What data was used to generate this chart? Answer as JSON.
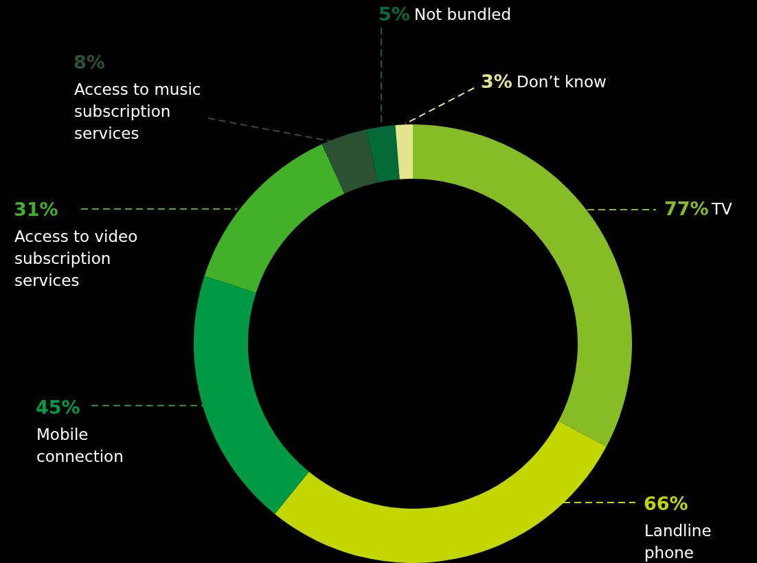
{
  "chart_data": {
    "type": "donut",
    "categories": [
      "TV",
      "Landline phone",
      "Mobile connection",
      "Access to video subscription services",
      "Access to music subscription services",
      "Not bundled",
      "Don’t know"
    ],
    "values": [
      77,
      66,
      45,
      31,
      8,
      5,
      3
    ],
    "value_labels": [
      "77%",
      "66%",
      "45%",
      "31%",
      "8%",
      "5%",
      "3%"
    ],
    "colors": [
      "#86bc25",
      "#c4d600",
      "#009a44",
      "#43b02a",
      "#2c5234",
      "#046a38",
      "#e3e48d"
    ]
  }
}
